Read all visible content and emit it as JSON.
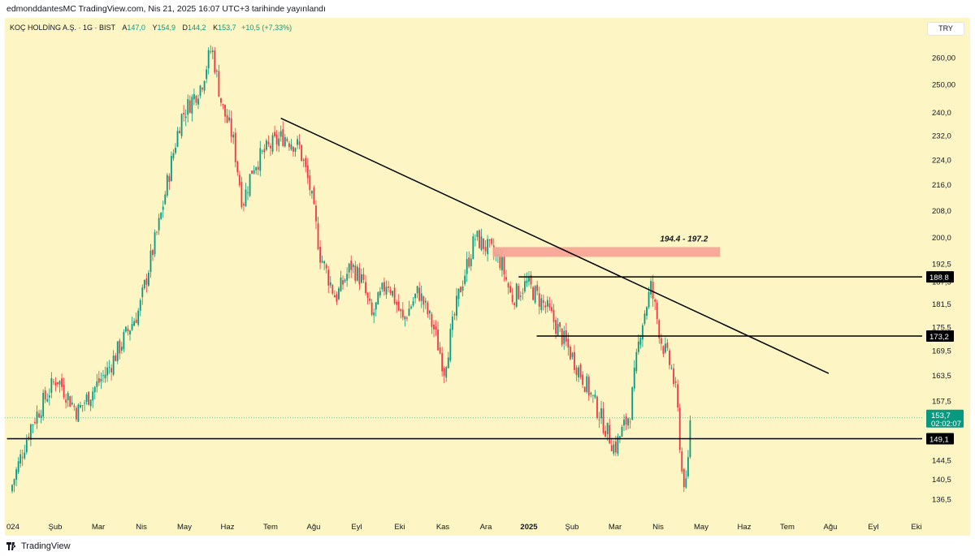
{
  "header": {
    "publish_text": "edmonddantesMC TradingView.com, Nis 21, 2025 16:07 UTC+3 tarihinde yayınlandı"
  },
  "legend": {
    "symbol": "KOÇ HOLDİNG A.Ş. · 1G · BIST",
    "open_label": "A",
    "open": "147,0",
    "high_label": "Y",
    "high": "154,9",
    "low_label": "D",
    "low": "144,2",
    "close_label": "K",
    "close": "153,7",
    "change": "+10,5 (+7,33%)"
  },
  "currency": "TRY",
  "footer": {
    "brand": "TradingView"
  },
  "colors": {
    "background": "#fdf5c4",
    "up": "#089981",
    "down": "#f23645",
    "zone": "#f7a296",
    "line": "#000000"
  },
  "chart_data": {
    "type": "candlestick",
    "y_scale": "log",
    "y_ticks": [
      "260,00",
      "250,00",
      "240,0",
      "232,0",
      "224,0",
      "216,0",
      "208,0",
      "200,0",
      "192,5",
      "187,5",
      "181,5",
      "175,5",
      "169,5",
      "163,5",
      "157,5",
      "149,1",
      "144,5",
      "140,5",
      "136,5"
    ],
    "x_ticks": [
      "024",
      "Şub",
      "Mar",
      "Nis",
      "May",
      "Haz",
      "Tem",
      "Ağu",
      "Eyl",
      "Eki",
      "Kas",
      "Ara",
      "2025",
      "Şub",
      "Mar",
      "Nis",
      "May",
      "Haz",
      "Tem",
      "Ağu",
      "Eyl",
      "Eki"
    ],
    "anchors": [
      [
        2024.0,
        138
      ],
      [
        2024.04,
        152
      ],
      [
        2024.09,
        163
      ],
      [
        2024.13,
        155
      ],
      [
        2024.19,
        165
      ],
      [
        2024.25,
        180
      ],
      [
        2024.29,
        205
      ],
      [
        2024.33,
        238
      ],
      [
        2024.37,
        250
      ],
      [
        2024.39,
        264
      ],
      [
        2024.41,
        242
      ],
      [
        2024.43,
        232
      ],
      [
        2024.45,
        210
      ],
      [
        2024.47,
        222
      ],
      [
        2024.5,
        228
      ],
      [
        2024.53,
        232
      ],
      [
        2024.56,
        228
      ],
      [
        2024.58,
        215
      ],
      [
        2024.6,
        195
      ],
      [
        2024.63,
        183
      ],
      [
        2024.66,
        192
      ],
      [
        2024.68,
        188
      ],
      [
        2024.7,
        178
      ],
      [
        2024.73,
        188
      ],
      [
        2024.76,
        177
      ],
      [
        2024.79,
        185
      ],
      [
        2024.82,
        175
      ],
      [
        2024.84,
        165
      ],
      [
        2024.87,
        185
      ],
      [
        2024.9,
        200
      ],
      [
        2024.93,
        196
      ],
      [
        2024.95,
        193
      ],
      [
        2024.97,
        183
      ],
      [
        2025.0,
        187
      ],
      [
        2025.04,
        180
      ],
      [
        2025.08,
        170
      ],
      [
        2025.12,
        160
      ],
      [
        2025.15,
        152
      ],
      [
        2025.17,
        147
      ],
      [
        2025.2,
        155
      ],
      [
        2025.22,
        175
      ],
      [
        2025.24,
        186
      ],
      [
        2025.26,
        172
      ],
      [
        2025.28,
        165
      ],
      [
        2025.29,
        158
      ],
      [
        2025.3,
        142
      ],
      [
        2025.31,
        138
      ],
      [
        2025.315,
        153.7
      ]
    ],
    "last_price": "153,7",
    "countdown": "02:02:07",
    "levels": [
      {
        "price": 188.8,
        "label": "188,8"
      },
      {
        "price": 173.2,
        "label": "173,2"
      },
      {
        "price": 149.1,
        "label": "149,1"
      }
    ],
    "zone": {
      "low": 194.4,
      "high": 197.2,
      "label": "194.4 - 197.2"
    },
    "trendline": {
      "from": [
        2024.52,
        238
      ],
      "to": [
        2025.58,
        164
      ]
    }
  }
}
